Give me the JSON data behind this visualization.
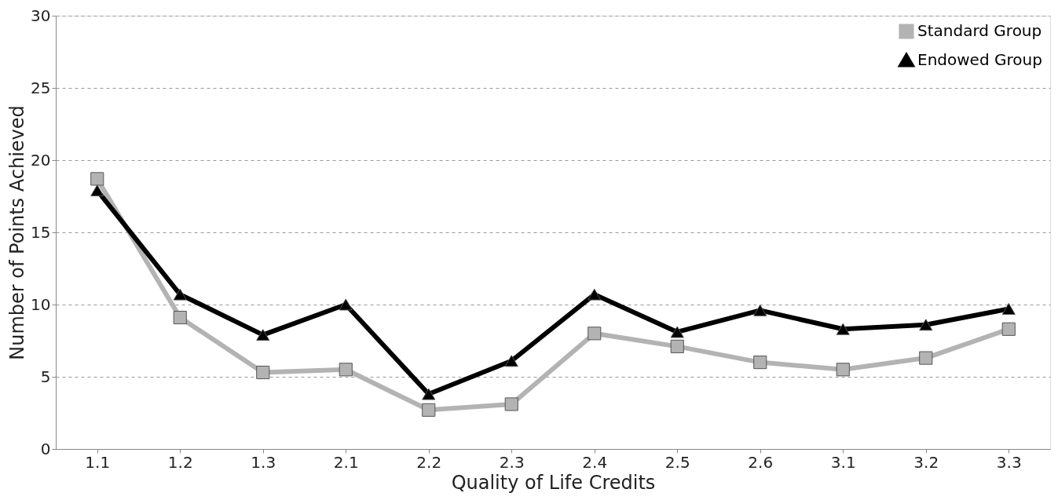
{
  "chart_data": {
    "type": "line",
    "xlabel": "Quality of Life Credits",
    "ylabel": "Number of Points Achieved",
    "categories": [
      "1.1",
      "1.2",
      "1.3",
      "2.1",
      "2.2",
      "2.3",
      "2.4",
      "2.5",
      "2.6",
      "3.1",
      "3.2",
      "3.3"
    ],
    "series": [
      {
        "name": "Standard Group",
        "color": "#b3b3b3",
        "marker": "square",
        "values": [
          18.7,
          9.1,
          5.3,
          5.5,
          2.7,
          3.1,
          8.0,
          7.1,
          6.0,
          5.5,
          6.3,
          8.3
        ]
      },
      {
        "name": "Endowed Group",
        "color": "#000000",
        "marker": "triangle",
        "values": [
          17.9,
          10.7,
          7.9,
          10.0,
          3.8,
          6.1,
          10.7,
          8.1,
          9.6,
          8.3,
          8.6,
          9.7
        ]
      }
    ],
    "ylim": [
      0,
      30
    ],
    "yticks": [
      0,
      5,
      10,
      15,
      20,
      25,
      30
    ],
    "grid": "y",
    "legend": "top right",
    "line_style": "solid"
  }
}
